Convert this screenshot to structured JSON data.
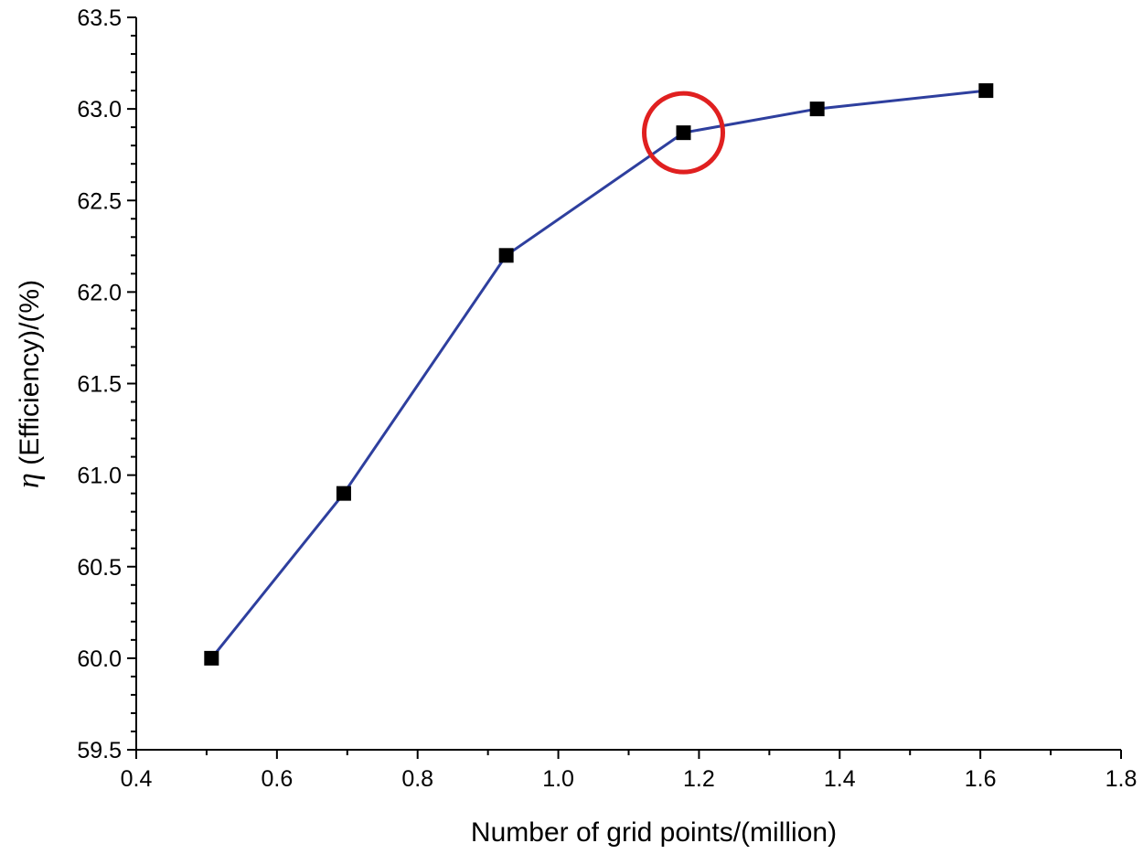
{
  "chart_data": {
    "type": "line",
    "title": "",
    "xlabel": "Number of grid points/(million)",
    "ylabel_symbol": "η",
    "ylabel": "(Efficiency)/(%)",
    "xlim": [
      0.4,
      1.8
    ],
    "ylim": [
      59.5,
      63.5
    ],
    "xticks": [
      "0.4",
      "0.6",
      "0.8",
      "1.0",
      "1.2",
      "1.4",
      "1.6",
      "1.8"
    ],
    "yticks": [
      "59.5",
      "60.0",
      "60.5",
      "61.0",
      "61.5",
      "62.0",
      "62.5",
      "63.0",
      "63.5"
    ],
    "grid": false,
    "series": [
      {
        "name": "Efficiency",
        "x": [
          0.507,
          0.695,
          0.926,
          1.178,
          1.368,
          1.608
        ],
        "y": [
          60.0,
          60.9,
          62.2,
          62.87,
          63.0,
          63.1
        ]
      }
    ],
    "highlight": {
      "x": 1.178,
      "y": 62.87,
      "marker": "circle"
    },
    "colors": {
      "line": "#2e3f9e",
      "marker": "#000000",
      "highlight": "#e02020",
      "axis": "#000000"
    }
  }
}
